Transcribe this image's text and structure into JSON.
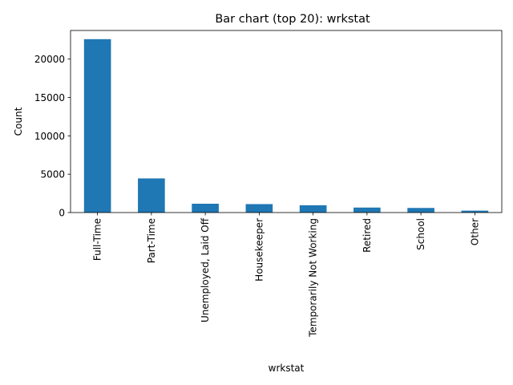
{
  "chart_data": {
    "type": "bar",
    "title": "Bar chart (top 20): wrkstat",
    "xlabel": "wrkstat",
    "ylabel": "Count",
    "categories": [
      "Full-Time",
      "Part-Time",
      "Unemployed, Laid Off",
      "Housekeeper",
      "Temporarily Not Working",
      "Retired",
      "School",
      "Other"
    ],
    "values": [
      22600,
      4450,
      1150,
      1100,
      950,
      650,
      600,
      250
    ],
    "ylim": [
      0,
      23730
    ],
    "yticks": [
      0,
      5000,
      10000,
      15000,
      20000
    ],
    "ytick_labels": [
      "0",
      "5000",
      "10000",
      "15000",
      "20000"
    ],
    "grid": false,
    "legend": "none",
    "bar_color": "#1f77b4"
  }
}
